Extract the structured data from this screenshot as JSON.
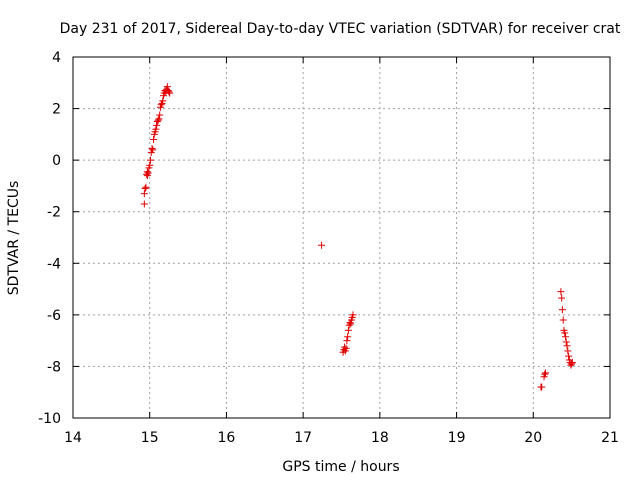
{
  "chart_data": {
    "type": "scatter",
    "title": "Day 231 of 2017, Sidereal Day-to-day VTEC variation (SDTVAR) for receiver crat",
    "xlabel": "GPS time / hours",
    "ylabel": "SDTVAR / TECUs",
    "xlim": [
      14,
      21
    ],
    "ylim": [
      -10,
      4
    ],
    "xticks": [
      "14",
      "15",
      "16",
      "17",
      "18",
      "19",
      "20",
      "21"
    ],
    "yticks": [
      "4",
      "2",
      "0",
      "-2",
      "-4",
      "-6",
      "-8",
      "-10"
    ],
    "grid": true,
    "marker": "+",
    "color": "#e00000",
    "points": [
      [
        14.93,
        -1.7
      ],
      [
        14.93,
        -1.3
      ],
      [
        14.94,
        -1.1
      ],
      [
        14.95,
        -1.05
      ],
      [
        14.96,
        -0.55
      ],
      [
        14.97,
        -0.45
      ],
      [
        14.97,
        -0.6
      ],
      [
        14.98,
        -0.5
      ],
      [
        14.99,
        -0.3
      ],
      [
        15.0,
        -0.2
      ],
      [
        15.01,
        0.0
      ],
      [
        15.02,
        0.3
      ],
      [
        15.03,
        0.45
      ],
      [
        15.04,
        0.4
      ],
      [
        15.05,
        0.8
      ],
      [
        15.06,
        1.0
      ],
      [
        15.07,
        1.1
      ],
      [
        15.08,
        1.2
      ],
      [
        15.09,
        1.35
      ],
      [
        15.1,
        1.5
      ],
      [
        15.11,
        1.55
      ],
      [
        15.12,
        1.6
      ],
      [
        15.13,
        1.75
      ],
      [
        15.14,
        2.05
      ],
      [
        15.15,
        2.15
      ],
      [
        15.16,
        2.2
      ],
      [
        15.17,
        2.3
      ],
      [
        15.18,
        2.5
      ],
      [
        15.19,
        2.6
      ],
      [
        15.2,
        2.7
      ],
      [
        15.21,
        2.65
      ],
      [
        15.22,
        2.75
      ],
      [
        15.23,
        2.85
      ],
      [
        15.24,
        2.7
      ],
      [
        15.25,
        2.65
      ],
      [
        15.26,
        2.6
      ],
      [
        17.24,
        -3.3
      ],
      [
        17.52,
        -7.45
      ],
      [
        17.53,
        -7.35
      ],
      [
        17.54,
        -7.25
      ],
      [
        17.55,
        -7.4
      ],
      [
        17.56,
        -7.3
      ],
      [
        17.57,
        -7.0
      ],
      [
        17.58,
        -6.85
      ],
      [
        17.59,
        -6.6
      ],
      [
        17.6,
        -6.4
      ],
      [
        17.61,
        -6.3
      ],
      [
        17.62,
        -6.35
      ],
      [
        17.63,
        -6.2
      ],
      [
        17.64,
        -6.1
      ],
      [
        17.65,
        -6.0
      ],
      [
        20.1,
        -8.8
      ],
      [
        20.11,
        -8.8
      ],
      [
        20.14,
        -8.4
      ],
      [
        20.15,
        -8.3
      ],
      [
        20.16,
        -8.25
      ],
      [
        20.36,
        -5.1
      ],
      [
        20.37,
        -5.35
      ],
      [
        20.38,
        -5.8
      ],
      [
        20.39,
        -6.2
      ],
      [
        20.4,
        -6.6
      ],
      [
        20.41,
        -6.7
      ],
      [
        20.42,
        -6.85
      ],
      [
        20.43,
        -7.05
      ],
      [
        20.44,
        -7.2
      ],
      [
        20.45,
        -7.4
      ],
      [
        20.46,
        -7.6
      ],
      [
        20.47,
        -7.75
      ],
      [
        20.48,
        -7.85
      ],
      [
        20.49,
        -7.95
      ],
      [
        20.5,
        -7.9
      ],
      [
        20.51,
        -7.85
      ]
    ]
  }
}
